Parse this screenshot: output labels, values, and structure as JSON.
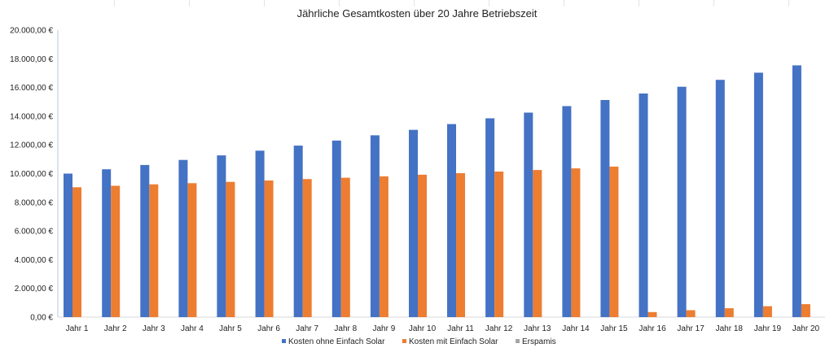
{
  "chart_data": {
    "type": "bar",
    "title": "Jährliche Gesamtkosten über 20 Jahre Betriebszeit",
    "xlabel": "",
    "ylabel": "",
    "ylim": [
      0,
      20000
    ],
    "y_ticks": [
      "0,00 €",
      "2.000,00 €",
      "4.000,00 €",
      "6.000,00 €",
      "8.000,00 €",
      "10.000,00 €",
      "12.000,00 €",
      "14.000,00 €",
      "16.000,00 €",
      "18.000,00 €",
      "20.000,00 €"
    ],
    "grid": false,
    "legend_position": "bottom",
    "categories": [
      "Jahr 1",
      "Jahr 2",
      "Jahr 3",
      "Jahr 4",
      "Jahr 5",
      "Jahr 6",
      "Jahr 7",
      "Jahr 8",
      "Jahr 9",
      "Jahr 10",
      "Jahr 11",
      "Jahr 12",
      "Jahr 13",
      "Jahr 14",
      "Jahr 15",
      "Jahr 16",
      "Jahr 17",
      "Jahr 18",
      "Jahr 19",
      "Jahr 20"
    ],
    "series": [
      {
        "name": "Kosten ohne Einfach Solar",
        "color": "#4472c4",
        "values": [
          10000,
          10300,
          10600,
          10950,
          11270,
          11600,
          11950,
          12300,
          12670,
          13050,
          13450,
          13850,
          14250,
          14700,
          15130,
          15580,
          16050,
          16530,
          17030,
          17540
        ]
      },
      {
        "name": "Kosten mit Einfach Solar",
        "color": "#ed7d31",
        "values": [
          9050,
          9150,
          9250,
          9330,
          9420,
          9520,
          9620,
          9710,
          9810,
          9920,
          10030,
          10140,
          10250,
          10360,
          10490,
          350,
          480,
          620,
          760,
          900
        ]
      },
      {
        "name": "Erspamis",
        "color": "#a5a5a5",
        "values": [
          0,
          0,
          0,
          0,
          0,
          0,
          0,
          0,
          0,
          0,
          0,
          0,
          0,
          0,
          0,
          0,
          0,
          0,
          0,
          0
        ]
      }
    ]
  }
}
